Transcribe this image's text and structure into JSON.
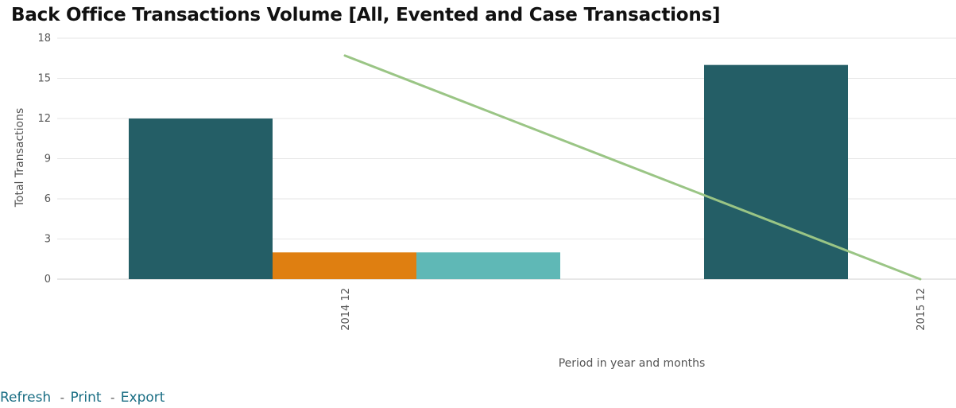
{
  "chart_data": {
    "type": "bar",
    "title": "Back Office Transactions Volume [All, Evented and Case Transactions]",
    "xlabel": "Period in year and months",
    "ylabel": "Total Transactions",
    "ylim": [
      0,
      18
    ],
    "yticks": [
      0,
      3,
      6,
      9,
      12,
      15,
      18
    ],
    "categories": [
      "2014 12",
      "2015 12"
    ],
    "grid": true,
    "legend": "none",
    "bars": [
      {
        "category": "2014 12",
        "value": 12,
        "color": "#245e66"
      },
      {
        "category": "2014 12",
        "value": 2,
        "color": "#df7f11"
      },
      {
        "category": "2014 12",
        "value": 2,
        "color": "#5fb8b6"
      },
      {
        "category": "2015 12",
        "value": 16,
        "color": "#245e66"
      }
    ],
    "line": {
      "color": "#9ac585",
      "points": [
        {
          "category": "2014 12",
          "value": 16.7
        },
        {
          "category": "2015 12",
          "value": 0
        }
      ]
    }
  },
  "footer": {
    "refresh_label": "Refresh",
    "print_label": "Print",
    "export_label": "Export",
    "separator": "-"
  }
}
